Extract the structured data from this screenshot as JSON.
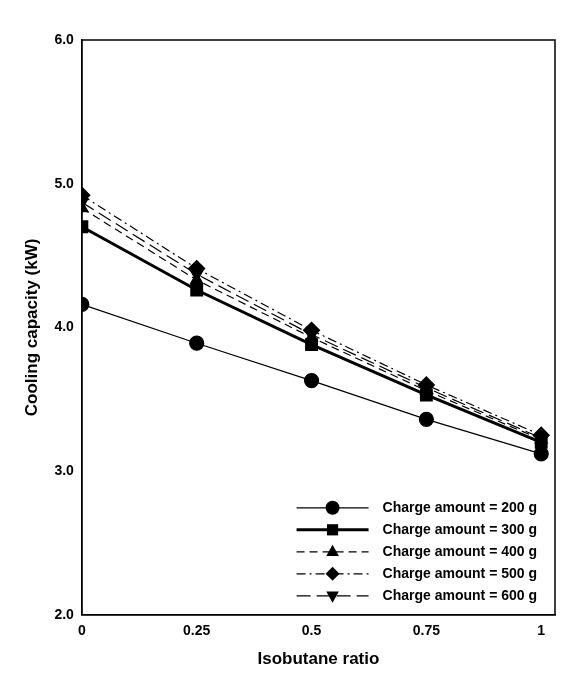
{
  "chart_data": {
    "type": "line",
    "x_label": "Isobutane ratio",
    "y_label": "Cooling capacity (kW)",
    "x": [
      0,
      0.25,
      0.5,
      0.75,
      1
    ],
    "xlim": [
      0,
      1.03
    ],
    "xticks": [
      0,
      0.25,
      0.5,
      0.75,
      1
    ],
    "ylim": [
      2,
      6
    ],
    "yticks": [
      {
        "value": 2,
        "label": "2.0"
      },
      {
        "value": 3,
        "label": "3.0"
      },
      {
        "value": 4,
        "label": "4.0"
      },
      {
        "value": 5,
        "label": "5.0"
      },
      {
        "value": 6,
        "label": "6.0"
      }
    ],
    "grid": false,
    "legend": "lower right",
    "series": [
      {
        "name": "Charge amount = 200 g",
        "color": "#000000",
        "marker": "circle",
        "line_style": "solid",
        "values": [
          4.16,
          3.89,
          3.63,
          3.36,
          3.12
        ]
      },
      {
        "name": "Charge amount = 300 g",
        "color": "#000000",
        "marker": "square",
        "line_style": "bold",
        "values": [
          4.7,
          4.26,
          3.88,
          3.53,
          3.2
        ]
      },
      {
        "name": "Charge amount = 400 g",
        "color": "#000000",
        "marker": "triangle",
        "line_style": "dashed",
        "values": [
          4.83,
          4.33,
          3.93,
          3.56,
          3.22
        ]
      },
      {
        "name": "Charge amount = 500 g",
        "color": "#000000",
        "marker": "diamond",
        "line_style": "dashdot",
        "values": [
          4.92,
          4.41,
          3.98,
          3.6,
          3.25
        ]
      },
      {
        "name": "Charge amount = 600 g",
        "color": "#000000",
        "marker": "triangle_down",
        "line_style": "longdash",
        "values": [
          4.87,
          4.37,
          3.95,
          3.58,
          3.23
        ]
      }
    ]
  }
}
